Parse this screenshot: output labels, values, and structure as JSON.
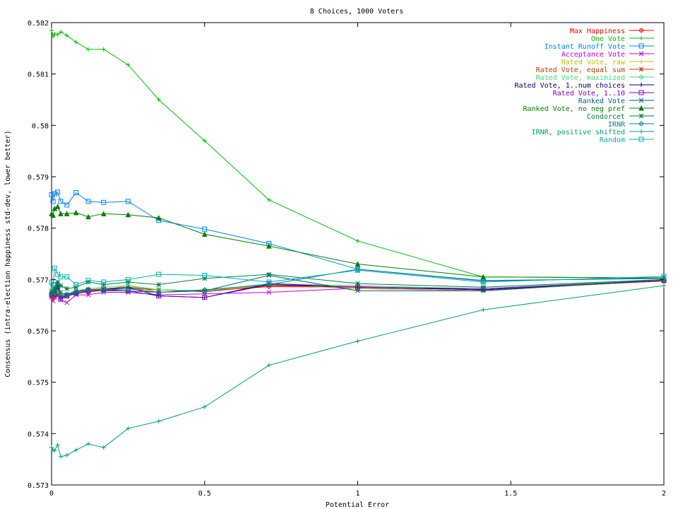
{
  "chart_data": {
    "type": "line",
    "title": "8 Choices, 1000 Voters",
    "xlabel": "Potential Error",
    "ylabel": "Consensus (intra-election happiness std-dev, lower better)",
    "xlim": [
      0,
      2
    ],
    "ylim": [
      0.573,
      0.582
    ],
    "xticks": [
      0,
      0.5,
      1,
      1.5,
      2
    ],
    "xtick_labels": [
      "0",
      "0.5",
      "1",
      "1.5",
      "2"
    ],
    "yticks": [
      0.573,
      0.574,
      0.575,
      0.576,
      0.577,
      0.578,
      0.579,
      0.58,
      0.581,
      0.582
    ],
    "ytick_labels": [
      "0.573",
      "0.574",
      "0.575",
      "0.576",
      "0.577",
      "0.578",
      "0.579",
      "0.58",
      "0.581",
      "0.582"
    ],
    "grid": false,
    "legend_position": "top-right",
    "x": [
      0,
      0.005,
      0.01,
      0.02,
      0.03,
      0.05,
      0.08,
      0.12,
      0.17,
      0.25,
      0.35,
      0.5,
      0.71,
      1,
      1.41,
      2
    ],
    "series": [
      {
        "name": "Max Happiness",
        "color": "#ff0000",
        "marker": "diamond",
        "values": [
          0.57673,
          0.57668,
          0.57669,
          0.57672,
          0.57668,
          0.5767,
          0.57673,
          0.57676,
          0.57679,
          0.57682,
          0.5768,
          0.57678,
          0.57686,
          0.57685,
          0.5768,
          0.57697
        ]
      },
      {
        "name": "One Vote",
        "color": "#00c000",
        "marker": "plus",
        "values": [
          0.58185,
          0.58173,
          0.58178,
          0.58177,
          0.58182,
          0.58175,
          0.58162,
          0.58148,
          0.58148,
          0.58118,
          0.5805,
          0.5797,
          0.57855,
          0.57775,
          0.57705,
          0.57703
        ]
      },
      {
        "name": "Instant Runoff Vote",
        "color": "#0080ff",
        "marker": "square",
        "values": [
          0.57865,
          0.57852,
          0.57867,
          0.5787,
          0.57852,
          0.57845,
          0.57869,
          0.57852,
          0.5785,
          0.57852,
          0.57815,
          0.57798,
          0.5777,
          0.5772,
          0.57697,
          0.57703
        ]
      },
      {
        "name": "Acceptance Vote",
        "color": "#c000ff",
        "marker": "x",
        "values": [
          0.57665,
          0.57658,
          0.57665,
          0.57668,
          0.5766,
          0.57655,
          0.5767,
          0.5767,
          0.57675,
          0.57675,
          0.5767,
          0.57672,
          0.57675,
          0.57683,
          0.57678,
          0.57698
        ]
      },
      {
        "name": "Rated Vote, raw",
        "color": "#c0c000",
        "marker": "plus",
        "values": [
          0.5767,
          0.57668,
          0.5767,
          0.57675,
          0.5767,
          0.57672,
          0.57675,
          0.57678,
          0.5768,
          0.57688,
          0.57675,
          0.57678,
          0.5769,
          0.57682,
          0.57678,
          0.57698
        ]
      },
      {
        "name": "Rated Vote, equal sum",
        "color": "#c04000",
        "marker": "star",
        "values": [
          0.57668,
          0.57665,
          0.57668,
          0.5767,
          0.57665,
          0.57668,
          0.57675,
          0.5768,
          0.57682,
          0.57685,
          0.5768,
          0.57676,
          0.57688,
          0.57686,
          0.5768,
          0.57698
        ]
      },
      {
        "name": "Rated Vote, maximized",
        "color": "#40e080",
        "marker": "diamond",
        "values": [
          0.57675,
          0.5767,
          0.57678,
          0.5768,
          0.57668,
          0.57672,
          0.57678,
          0.57682,
          0.57685,
          0.57688,
          0.5768,
          0.57678,
          0.57692,
          0.57688,
          0.57682,
          0.577
        ]
      },
      {
        "name": "Rated Vote, 1..num choices",
        "color": "#000080",
        "marker": "plus",
        "values": [
          0.57672,
          0.5767,
          0.57675,
          0.57688,
          0.57665,
          0.57668,
          0.57672,
          0.57678,
          0.5768,
          0.57685,
          0.57668,
          0.57665,
          0.5769,
          0.57685,
          0.5768,
          0.57698
        ]
      },
      {
        "name": "Rated Vote, 1..10",
        "color": "#8000c0",
        "marker": "square",
        "values": [
          0.5767,
          0.5767,
          0.57672,
          0.57685,
          0.57662,
          0.57668,
          0.57673,
          0.57678,
          0.5768,
          0.57678,
          0.57668,
          0.57665,
          0.57692,
          0.57685,
          0.57682,
          0.57698
        ]
      },
      {
        "name": "Ranked Vote",
        "color": "#006080",
        "marker": "x",
        "values": [
          0.57678,
          0.57672,
          0.5768,
          0.5769,
          0.57675,
          0.5767,
          0.57678,
          0.5768,
          0.57678,
          0.57678,
          0.57675,
          0.57678,
          0.57708,
          0.57678,
          0.57678,
          0.577
        ]
      },
      {
        "name": "Ranked Vote, no neg pref",
        "color": "#008000",
        "marker": "triangle",
        "values": [
          0.57828,
          0.57825,
          0.57838,
          0.57842,
          0.57828,
          0.57828,
          0.5783,
          0.57822,
          0.57828,
          0.57826,
          0.5782,
          0.57788,
          0.57765,
          0.5773,
          0.57705,
          0.57703
        ]
      },
      {
        "name": "Condorcet",
        "color": "#008040",
        "marker": "star",
        "values": [
          0.57678,
          0.57675,
          0.57685,
          0.57695,
          0.57688,
          0.57682,
          0.57685,
          0.57695,
          0.5769,
          0.57695,
          0.5769,
          0.57702,
          0.5771,
          0.57692,
          0.57685,
          0.577
        ]
      },
      {
        "name": "IRNR",
        "color": "#008080",
        "marker": "diamond",
        "values": [
          0.57672,
          0.5767,
          0.57675,
          0.57682,
          0.57668,
          0.5767,
          0.57675,
          0.5768,
          0.5768,
          0.57682,
          0.57675,
          0.5768,
          0.5769,
          0.5772,
          0.57698,
          0.57702
        ]
      },
      {
        "name": "IRNR, positive shifted",
        "color": "#00a070",
        "marker": "plus",
        "values": [
          0.57373,
          0.57368,
          0.57367,
          0.57378,
          0.57355,
          0.57358,
          0.57368,
          0.5738,
          0.57373,
          0.5741,
          0.57424,
          0.57452,
          0.57533,
          0.5758,
          0.57641,
          0.57688
        ]
      },
      {
        "name": "Random",
        "color": "#00b0b0",
        "marker": "square",
        "values": [
          0.57695,
          0.5769,
          0.57722,
          0.5771,
          0.57705,
          0.57705,
          0.5769,
          0.57698,
          0.57695,
          0.577,
          0.5771,
          0.57708,
          0.57695,
          0.57718,
          0.57695,
          0.57706
        ]
      }
    ]
  }
}
